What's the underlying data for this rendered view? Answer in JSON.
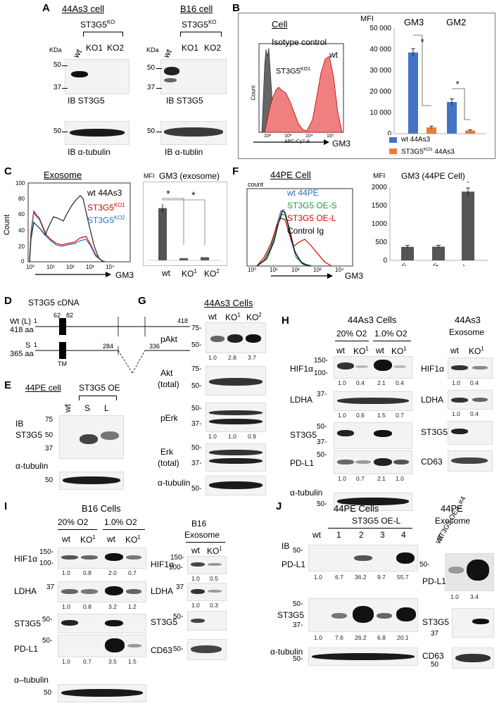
{
  "panel_letters": {
    "a": "A",
    "b": "B",
    "c": "C",
    "d": "D",
    "e": "E",
    "f": "F",
    "g": "G",
    "h": "H",
    "i": "I",
    "j": "J"
  },
  "common": {
    "wt": "wt",
    "ko1": "KO1",
    "ko2": "KO2",
    "ko": "KO",
    "sup1": "1",
    "sup2": "2",
    "kda": "KDa",
    "ib": "IB",
    "st3g5": "ST3G5",
    "ib_st3g5": "IB ST3G5",
    "ib_tub_a": "IB α-tubulin",
    "ib_tub_b": "IB α-tublin",
    "tubulin": "α-tubulin",
    "tubulin_dash": "α–tubulin",
    "hif": "HIF1α",
    "ldha": "LDHA",
    "pdl1": "PD-L1",
    "cd63": "CD63",
    "o2_20": "20% O2",
    "o2_1": "1.0% O2",
    "st3g5ko_base": "ST3G5",
    "ko_sup": "KO",
    "mw_100": "100-",
    "mw_150": "150-",
    "mw_75": "75",
    "mw_50": "50",
    "mw_37": "37",
    "mw_50d": "50-",
    "mw_37d": "37-",
    "mw_75d": "75-",
    "mw_150d": "150-"
  },
  "panelA": {
    "cell1": "44As3 cell",
    "cell2": "B16 cell"
  },
  "panelB": {
    "title": "Cell",
    "iso": "Isotype control",
    "wt": "wt",
    "ko_label": "ST3G5",
    "ko_sup": "KO1",
    "x_axis": "APC-Cy7-A",
    "gm3": "GM3",
    "y_axis": "Count",
    "x_ticks": [
      "10²",
      "10³",
      "10⁴",
      "10⁵"
    ],
    "legend_wt": "wt 44As3",
    "legend_ko": "ST3G5",
    "legend_ko_sup": "KO1",
    "legend_ko_tail": " 44As3",
    "sig": "*"
  },
  "panelC": {
    "title": "Exosome",
    "legend_wt": "wt 44As3",
    "legend_ko1": "ST3G5",
    "legend_ko1_sup": "KO1",
    "legend_ko2": "ST3G5",
    "legend_ko2_sup": "KO2",
    "y_axis": "Count",
    "gm3": "GM3",
    "bar_title": "GM3 (exosome)",
    "mfi": "MFI",
    "x_ticks": [
      "10⁰",
      "10¹",
      "10²",
      "10³",
      "10⁴"
    ],
    "y_ticks": [
      "0",
      "20",
      "40",
      "60",
      "80",
      "100"
    ],
    "cats": [
      "wt",
      "KO",
      "KO"
    ],
    "cat_sups": [
      "",
      "1",
      "2"
    ],
    "sig": "*"
  },
  "panelD": {
    "title": "ST3G5 cDNA",
    "wt_label": "Wt (L)",
    "wt_len": "418 aa",
    "s_label": "S",
    "s_len": "365 aa",
    "n1": "1",
    "n62": "62",
    "n82": "82",
    "n418": "418",
    "n284": "284",
    "n336": "336",
    "tm": "TM"
  },
  "panelE": {
    "title": "44PE cell",
    "oe": "ST3G5 OE",
    "s": "S",
    "l": "L",
    "ib": "IB",
    "st3g5": "ST3G5"
  },
  "panelF": {
    "title": "44PE Cell",
    "count": "count",
    "legend_wt": "wt 44PE",
    "legend_s": "ST3G5 OE-S",
    "legend_l": "ST3G5 OE-L",
    "legend_ig": "Control Ig",
    "gm3": "GM3",
    "bar_title": "GM3  (44PE Cell)",
    "mfi": "MFI",
    "x_ticks": [
      "10⁰",
      "10¹",
      "10²",
      "10³",
      "10⁴"
    ],
    "cats": [
      "wt 44PE",
      "ST3G5 OE-S",
      "ST3G5 OE-L"
    ],
    "sig": "*"
  },
  "panelG": {
    "title": "44As3 Cells",
    "pakt": "pAkt",
    "akt1": "Akt",
    "akt2": "(total)",
    "perk": "pErk",
    "erk1": "Erk",
    "erk2": "(total)",
    "q_pakt": [
      "1.0",
      "2.8",
      "3.7"
    ],
    "q_perk": [
      "1.0",
      "1.0",
      "0.9"
    ]
  },
  "panelH": {
    "title": "44As3 Cells",
    "exo1": "44As3",
    "exo2": "Exosome",
    "q_hif": [
      "1.0",
      "0.4",
      "2.1",
      "0.4"
    ],
    "q_ldha": [
      "1.0",
      "0.6",
      "1.5",
      "0.7"
    ],
    "q_pdl1": [
      "1.0",
      "0.7",
      "2.1",
      "1.0"
    ],
    "qe_hif": [
      "1.0",
      "0.4"
    ],
    "qe_ldha": [
      "1.0",
      "0.4"
    ]
  },
  "panelI": {
    "title": "B16 Cells",
    "exo1": "B16",
    "exo2": "Exosome",
    "q_hif": [
      "1.0",
      "0.8",
      "2.0",
      "0.7"
    ],
    "q_ldha": [
      "1.0",
      "0.8",
      "3.2",
      "1.2"
    ],
    "q_pdl1": [
      "1.0",
      "0.7",
      "3.5",
      "1.5"
    ],
    "qe_hif": [
      "1.0",
      "0.5"
    ],
    "qe_ldha": [
      "1.0",
      "0.3"
    ]
  },
  "panelJ": {
    "title": "44PE Cells",
    "oe": "ST3G5 OE-L",
    "lanes": [
      "wt",
      "1",
      "2",
      "3",
      "4"
    ],
    "exo_title": "44PE",
    "exo2": "Exosome",
    "exo_lane": "ST3G5 OE-L #4",
    "q_pdl1": [
      "1.0",
      "6.7",
      "36.2",
      "9.7",
      "55.7"
    ],
    "q_st3g5": [
      "1.0",
      "7.6",
      "26.2",
      "6.8",
      "20.1"
    ],
    "qe_pdl1": [
      "1.0",
      "3.4"
    ]
  },
  "chart_data": [
    {
      "type": "bar",
      "title": "",
      "ylabel": "MFI",
      "categories": [
        "GM3",
        "GM2"
      ],
      "series": [
        {
          "name": "wt 44As3",
          "values": [
            38500,
            15000
          ]
        },
        {
          "name": "ST3G5 KO1 44As3",
          "values": [
            3000,
            1500
          ]
        }
      ],
      "ylim": [
        0,
        50000
      ],
      "y_ticks": [
        "0",
        "10 000",
        "20 000",
        "30 000",
        "40 000",
        "50 000"
      ],
      "colors": [
        "#4472c4",
        "#ed7d31"
      ]
    },
    {
      "type": "bar",
      "title": "GM3 (exosome)",
      "ylabel": "MFI",
      "categories": [
        "wt",
        "KO1",
        "KO2"
      ],
      "values": [
        232,
        10,
        14
      ],
      "ylim": [
        0,
        300
      ],
      "color": "#555555"
    },
    {
      "type": "bar",
      "title": "GM3  (44PE Cell)",
      "ylabel": "MFI",
      "categories": [
        "wt 44PE",
        "ST3G5 OE-S",
        "ST3G5 OE-L"
      ],
      "values": [
        370,
        375,
        1880
      ],
      "ylim": [
        0,
        2000
      ],
      "y_ticks": [
        "0",
        "500",
        "1000",
        "1500",
        "2000"
      ],
      "color": "#555555"
    }
  ]
}
